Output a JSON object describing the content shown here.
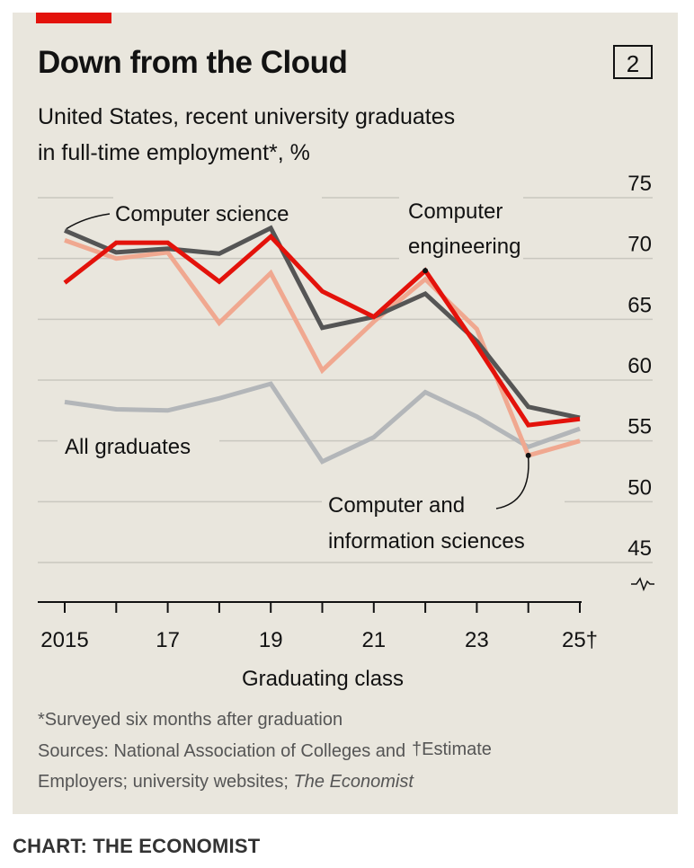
{
  "header": {
    "title": "Down from the Cloud",
    "chart_number": "2",
    "subtitle_line1": "United States, recent university graduates",
    "subtitle_line2": "in full-time employment*, %"
  },
  "footer": {
    "footnote": "*Surveyed six months after graduation",
    "estimate_note": "†Estimate",
    "sources_line1": "Sources: National Association of Colleges and",
    "sources_line2_prefix": "Employers; university websites; ",
    "sources_line2_italic": "The Economist",
    "credit": "CHART: THE ECONOMIST"
  },
  "colors": {
    "background": "#e9e6dd",
    "accent": "#e3120b",
    "computer_science": "#555555",
    "computer_engineering": "#e3120b",
    "computer_information_sciences": "#f0a890",
    "all_graduates": "#b3b6b9",
    "gridline": "#c9c7bf"
  },
  "chart_data": {
    "type": "line",
    "xlabel": "Graduating class",
    "ylabel": "",
    "x": [
      2015,
      2016,
      2017,
      2018,
      2019,
      2020,
      2021,
      2022,
      2023,
      2024,
      2025
    ],
    "x_ticks": [
      {
        "value": 2015,
        "label": "2015"
      },
      {
        "value": 2017,
        "label": "17"
      },
      {
        "value": 2019,
        "label": "19"
      },
      {
        "value": 2021,
        "label": "21"
      },
      {
        "value": 2023,
        "label": "23"
      },
      {
        "value": 2025,
        "label": "25†"
      }
    ],
    "y_ticks": [
      75,
      70,
      65,
      60,
      55,
      50,
      45
    ],
    "ylim": [
      45,
      75
    ],
    "axis_break": true,
    "grid": true,
    "series": [
      {
        "name": "All graduates",
        "color_key": "all_graduates",
        "values": [
          58.2,
          57.6,
          57.5,
          58.5,
          59.7,
          53.3,
          55.3,
          59.0,
          57.0,
          54.5,
          56.0
        ]
      },
      {
        "name": "Computer and information sciences",
        "color_key": "computer_information_sciences",
        "values": [
          71.5,
          70.0,
          70.5,
          64.7,
          68.8,
          60.8,
          64.8,
          68.3,
          64.2,
          53.8,
          55.0
        ]
      },
      {
        "name": "Computer science",
        "color_key": "computer_science",
        "values": [
          72.3,
          70.5,
          70.8,
          70.4,
          72.5,
          64.3,
          65.2,
          67.1,
          63.2,
          57.8,
          56.9
        ]
      },
      {
        "name": "Computer engineering",
        "color_key": "computer_engineering",
        "values": [
          68.0,
          71.3,
          71.3,
          68.1,
          71.8,
          67.3,
          65.2,
          69.0,
          62.8,
          56.3,
          56.8
        ]
      }
    ],
    "labels": {
      "computer_science": "Computer science",
      "computer_engineering_line1": "Computer",
      "computer_engineering_line2": "engineering",
      "all_graduates": "All graduates",
      "cis_line1": "Computer and",
      "cis_line2": "information sciences"
    }
  }
}
